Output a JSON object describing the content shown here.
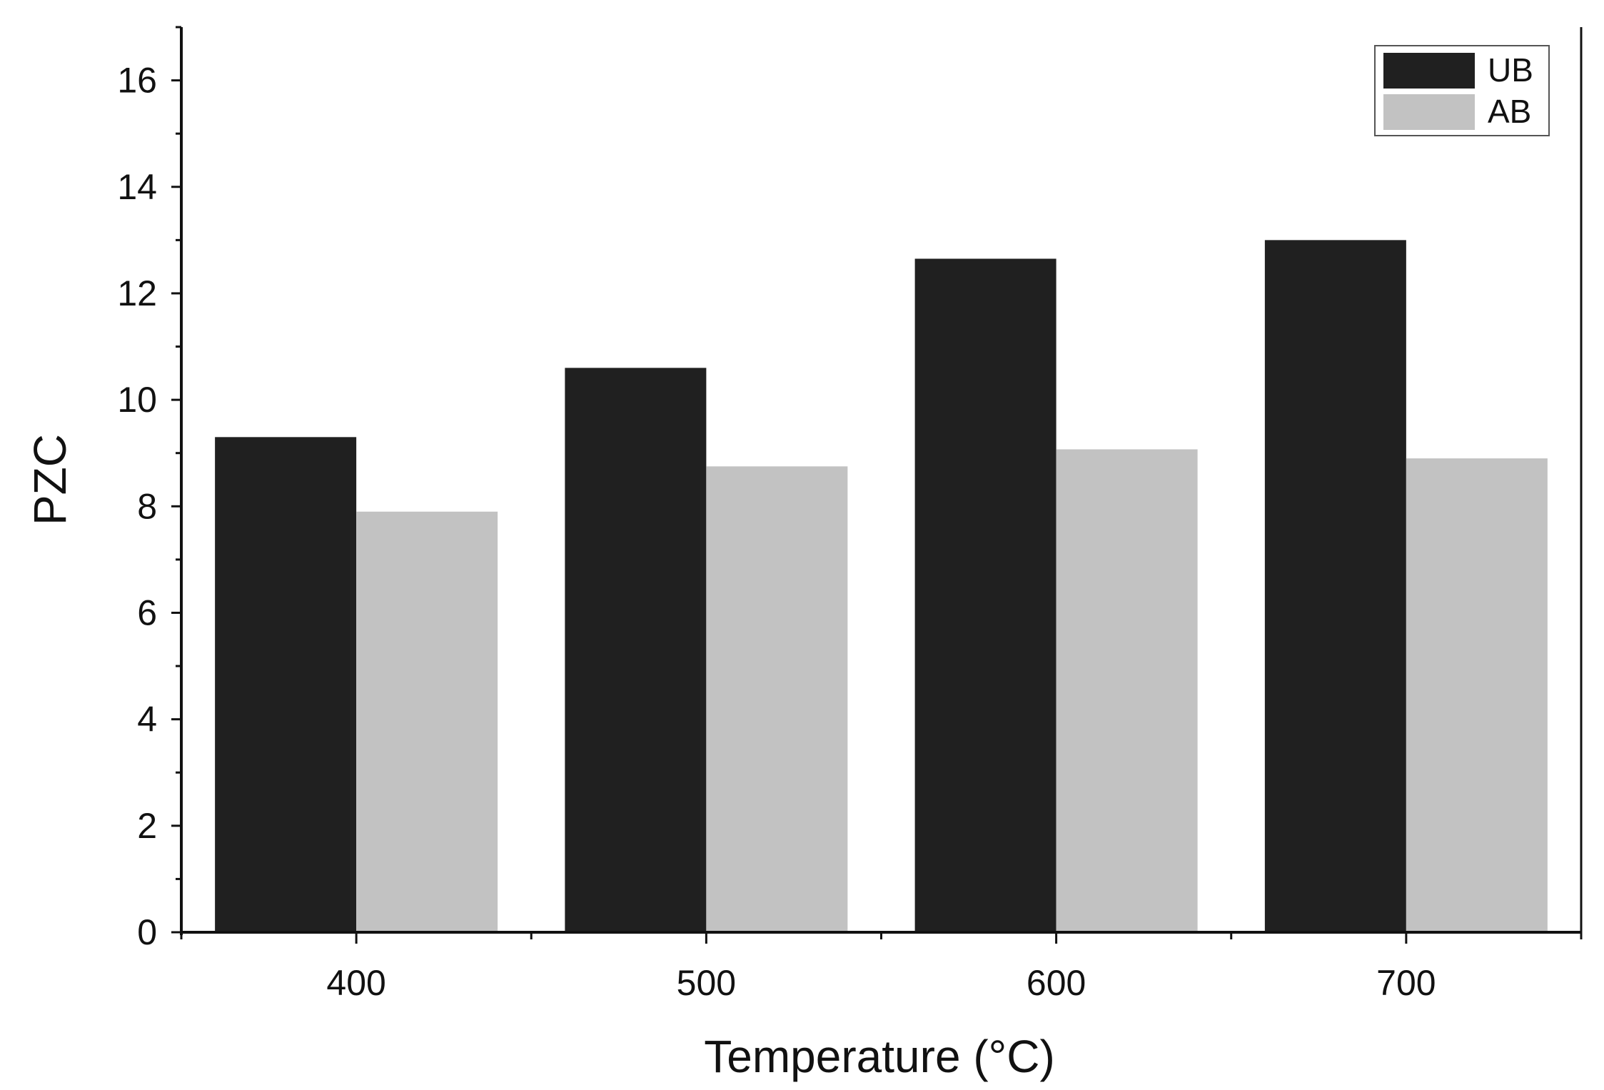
{
  "chart_data": {
    "type": "bar",
    "title": "",
    "xlabel": "Temperature (°C)",
    "ylabel": "PZC",
    "categories": [
      "400",
      "500",
      "600",
      "700"
    ],
    "series": [
      {
        "name": "UB",
        "values": [
          9.3,
          10.6,
          12.65,
          13.0
        ],
        "color": "#202020"
      },
      {
        "name": "AB",
        "values": [
          7.9,
          8.75,
          9.07,
          8.9
        ],
        "color": "#c2c2c2"
      }
    ],
    "ylim": [
      0,
      17
    ],
    "yticks": [
      "0",
      "2",
      "4",
      "6",
      "8",
      "10",
      "12",
      "14",
      "16"
    ],
    "grid": false,
    "legend_position": "top-right",
    "axis_color": "#111111"
  }
}
